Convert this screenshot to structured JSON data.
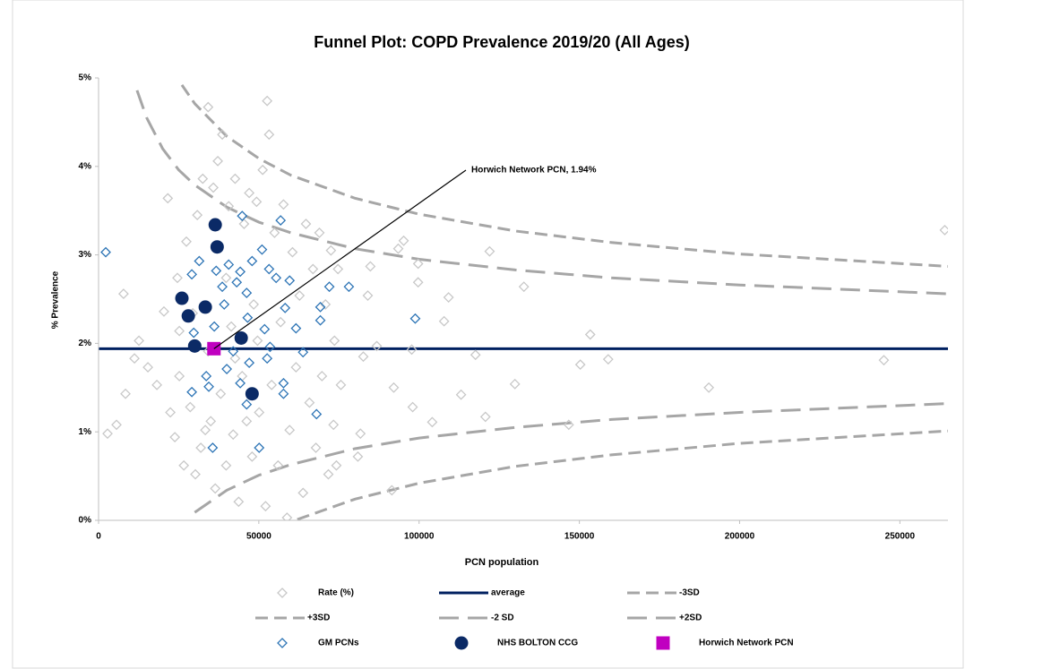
{
  "chart_data": {
    "type": "scatter",
    "title": "Funnel Plot: COPD Prevalence 2019/20 (All Ages)",
    "x_label": "PCN population",
    "y_label": "% Prevalence",
    "xlim": [
      0,
      265000
    ],
    "ylim": [
      0,
      5
    ],
    "xticks": [
      0,
      50000,
      100000,
      150000,
      200000,
      250000
    ],
    "yticks": [
      {
        "value": 0,
        "label": "0%"
      },
      {
        "value": 1,
        "label": "1%"
      },
      {
        "value": 2,
        "label": "2%"
      },
      {
        "value": 3,
        "label": "3%"
      },
      {
        "value": 4,
        "label": "4%"
      },
      {
        "value": 5,
        "label": "5%"
      }
    ],
    "annotation": "Horwich Network PCN, 1.94%",
    "series": [
      {
        "name": "Rate (%)",
        "color": "#c8c8c8",
        "marker": "diamond",
        "filled": false,
        "x": [
          264000,
          245000,
          190400,
          159000,
          150300,
          146700,
          153400,
          132700,
          129900,
          122000,
          120700,
          117600,
          113100,
          109200,
          107800,
          104100,
          99700,
          99700,
          95200,
          93500,
          97700,
          98000,
          91500,
          92100,
          86800,
          84800,
          84000,
          82600,
          81700,
          80900,
          75600,
          74200,
          73300,
          2800,
          5600,
          7800,
          8400,
          11200,
          12600,
          15400,
          18200,
          20400,
          21600,
          22400,
          23800,
          24600,
          25200,
          26600,
          27400,
          28600,
          30200,
          30800,
          31900,
          32500,
          33300,
          34200,
          35000,
          35800,
          36400,
          37200,
          38100,
          38600,
          39800,
          40600,
          41400,
          42000,
          42600,
          43700,
          44800,
          45400,
          46200,
          47000,
          47900,
          48400,
          49300,
          50100,
          51200,
          52100,
          52600,
          53200,
          54000,
          54900,
          56000,
          56800,
          57700,
          58800,
          59600,
          60500,
          61600,
          62700,
          63800,
          64700,
          65800,
          66900,
          67800,
          68900,
          69700,
          70800,
          71700,
          72500,
          73600,
          74700,
          25200,
          29400,
          34200,
          39800,
          42600,
          49600
        ],
        "y": [
          3.28,
          1.81,
          1.5,
          1.82,
          1.76,
          1.08,
          2.1,
          2.64,
          1.54,
          3.04,
          1.17,
          1.87,
          1.42,
          2.52,
          2.25,
          1.11,
          2.69,
          2.9,
          3.16,
          3.07,
          1.93,
          1.28,
          0.34,
          1.5,
          1.97,
          2.87,
          2.54,
          1.85,
          0.98,
          0.72,
          1.53,
          0.62,
          1.08,
          0.98,
          1.08,
          2.56,
          1.43,
          1.83,
          2.03,
          1.73,
          1.53,
          2.36,
          3.64,
          1.22,
          0.94,
          2.74,
          1.63,
          0.62,
          3.15,
          1.28,
          0.52,
          3.45,
          0.82,
          3.86,
          1.02,
          4.67,
          1.12,
          3.76,
          0.36,
          4.06,
          1.43,
          4.36,
          0.62,
          3.55,
          2.19,
          0.97,
          3.86,
          0.21,
          1.63,
          3.35,
          1.12,
          3.7,
          0.72,
          2.44,
          3.6,
          1.22,
          3.96,
          0.16,
          4.74,
          4.36,
          1.53,
          3.25,
          0.62,
          2.24,
          3.57,
          0.03,
          1.02,
          3.03,
          1.73,
          2.54,
          0.31,
          3.35,
          1.33,
          2.84,
          0.82,
          3.25,
          1.63,
          2.44,
          0.52,
          3.05,
          2.03,
          2.84,
          2.14,
          2.34,
          1.91,
          2.74,
          1.83,
          2.03
        ]
      },
      {
        "name": "average",
        "color": "#002060",
        "marker": "line",
        "line_style": "solid",
        "x": [
          0,
          265000
        ],
        "y": [
          1.94,
          1.94
        ]
      },
      {
        "name": "-3SD",
        "color": "#a6a6a6",
        "marker": "line",
        "line_style": "dashed",
        "x": [
          62000,
          80000,
          100000,
          130000,
          160000,
          200000,
          265000
        ],
        "y": [
          0.01,
          0.24,
          0.42,
          0.61,
          0.74,
          0.87,
          1.01
        ]
      },
      {
        "name": "+3SD",
        "color": "#a6a6a6",
        "marker": "line",
        "line_style": "dashed",
        "x": [
          26000,
          30000,
          40000,
          50000,
          60000,
          80000,
          100000,
          130000,
          160000,
          200000,
          265000
        ],
        "y": [
          4.92,
          4.71,
          4.34,
          4.09,
          3.9,
          3.64,
          3.46,
          3.27,
          3.14,
          3.01,
          2.87
        ]
      },
      {
        "name": "-2 SD",
        "color": "#a6a6a6",
        "marker": "line",
        "line_style": "long-dashed",
        "x": [
          30000,
          40000,
          50000,
          60000,
          80000,
          100000,
          130000,
          160000,
          200000,
          265000
        ],
        "y": [
          0.09,
          0.34,
          0.51,
          0.63,
          0.81,
          0.93,
          1.05,
          1.14,
          1.22,
          1.32
        ]
      },
      {
        "name": "+2SD",
        "color": "#a6a6a6",
        "marker": "line",
        "line_style": "long-dashed",
        "x": [
          12000,
          15000,
          20000,
          25000,
          30000,
          40000,
          50000,
          60000,
          80000,
          100000,
          130000,
          160000,
          200000,
          265000
        ],
        "y": [
          4.86,
          4.55,
          4.2,
          3.96,
          3.79,
          3.54,
          3.37,
          3.25,
          3.07,
          2.95,
          2.83,
          2.74,
          2.66,
          2.56
        ]
      },
      {
        "name": "GM PCNs",
        "color": "#2e75b6",
        "marker": "diamond",
        "filled": false,
        "x": [
          2240,
          44800,
          56800,
          98800,
          78100,
          72000,
          69200,
          69200,
          61600,
          58200,
          57700,
          57700,
          68000,
          50100,
          35600,
          29100,
          33600,
          34400,
          40000,
          47000,
          52600,
          46200,
          44200,
          51000,
          47900,
          44200,
          40600,
          36700,
          29100,
          31400,
          38600,
          46200,
          43100,
          39200,
          46500,
          53200,
          55400,
          59600,
          29700,
          36100,
          42000,
          51800,
          63800,
          53500
        ],
        "y": [
          3.03,
          3.44,
          3.39,
          2.28,
          2.64,
          2.64,
          2.41,
          2.26,
          2.17,
          2.4,
          1.55,
          1.43,
          1.2,
          0.82,
          0.82,
          1.45,
          1.63,
          1.51,
          1.71,
          1.78,
          1.83,
          1.31,
          1.55,
          3.06,
          2.93,
          2.81,
          2.89,
          2.82,
          2.78,
          2.93,
          2.64,
          2.57,
          2.69,
          2.44,
          2.29,
          2.84,
          2.74,
          2.71,
          2.12,
          2.19,
          1.91,
          2.16,
          1.9,
          1.96
        ]
      },
      {
        "name": "NHS BOLTON CCG",
        "color": "#0b2a66",
        "marker": "circle",
        "filled": true,
        "x": [
          26000,
          28000,
          33300,
          36400,
          37000,
          30000,
          44500,
          47900
        ],
        "y": [
          2.51,
          2.31,
          2.41,
          3.34,
          3.09,
          1.97,
          2.06,
          1.43
        ]
      },
      {
        "name": "Horwich Network PCN",
        "color": "#c000c0",
        "marker": "square",
        "filled": true,
        "x": [
          36000
        ],
        "y": [
          1.94
        ]
      }
    ]
  }
}
